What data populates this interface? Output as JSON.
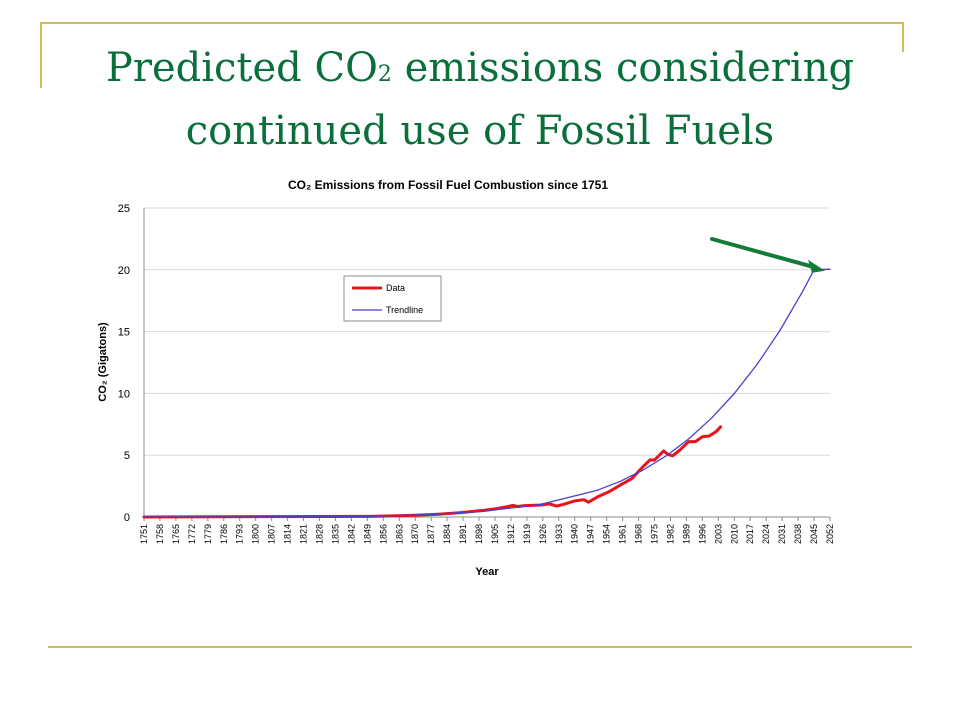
{
  "slide": {
    "title_line1_part1": "Predicted CO",
    "title_subscript": "2",
    "title_line1_part2": " emissions considering",
    "title_line2": "continued use of Fossil Fuels"
  },
  "colors": {
    "frame": "#cbbf5d",
    "title": "#0a6f3a",
    "data_series": "#e8141a",
    "trendline_series": "#4a3fcf",
    "arrow": "#157a3a",
    "grid": "#d9d9d9"
  },
  "chart_data": {
    "type": "line",
    "title": "CO₂ Emissions from Fossil Fuel Combustion since 1751",
    "xlabel": "Year",
    "ylabel": "CO₂ (Gigatons)",
    "xlim": [
      1751,
      2052
    ],
    "ylim": [
      0,
      25
    ],
    "yticks": [
      0,
      5,
      10,
      15,
      20,
      25
    ],
    "xticks": [
      "1751",
      "1758",
      "1765",
      "1772",
      "1779",
      "1786",
      "1793",
      "1800",
      "1807",
      "1814",
      "1821",
      "1828",
      "1835",
      "1842",
      "1849",
      "1856",
      "1863",
      "1870",
      "1877",
      "1884",
      "1891",
      "1898",
      "1905",
      "1912",
      "1919",
      "1926",
      "1933",
      "1940",
      "1947",
      "1954",
      "1961",
      "1968",
      "1975",
      "1982",
      "1989",
      "1996",
      "2003",
      "2010",
      "2017",
      "2024",
      "2031",
      "2038",
      "2045",
      "2052"
    ],
    "grid": "horizontal",
    "legend_position": "upper-left",
    "series": [
      {
        "name": "Data",
        "color": "#e8141a",
        "points": [
          [
            1751,
            0.0
          ],
          [
            1800,
            0.03
          ],
          [
            1830,
            0.04
          ],
          [
            1850,
            0.05
          ],
          [
            1860,
            0.09
          ],
          [
            1870,
            0.14
          ],
          [
            1880,
            0.23
          ],
          [
            1890,
            0.36
          ],
          [
            1900,
            0.53
          ],
          [
            1905,
            0.66
          ],
          [
            1910,
            0.82
          ],
          [
            1913,
            0.94
          ],
          [
            1915,
            0.85
          ],
          [
            1918,
            0.92
          ],
          [
            1920,
            0.93
          ],
          [
            1925,
            0.97
          ],
          [
            1929,
            1.06
          ],
          [
            1932,
            0.88
          ],
          [
            1935,
            1.02
          ],
          [
            1940,
            1.3
          ],
          [
            1944,
            1.4
          ],
          [
            1946,
            1.2
          ],
          [
            1950,
            1.63
          ],
          [
            1955,
            2.04
          ],
          [
            1960,
            2.58
          ],
          [
            1965,
            3.1
          ],
          [
            1970,
            4.08
          ],
          [
            1973,
            4.62
          ],
          [
            1975,
            4.6
          ],
          [
            1979,
            5.35
          ],
          [
            1981,
            5.05
          ],
          [
            1983,
            4.95
          ],
          [
            1986,
            5.4
          ],
          [
            1990,
            6.1
          ],
          [
            1993,
            6.1
          ],
          [
            1996,
            6.5
          ],
          [
            1999,
            6.55
          ],
          [
            2002,
            6.9
          ],
          [
            2004,
            7.3
          ]
        ]
      },
      {
        "name": "Trendline",
        "color": "#4a3fcf",
        "points": [
          [
            1751,
            0.0
          ],
          [
            1800,
            0.0
          ],
          [
            1850,
            0.06
          ],
          [
            1875,
            0.19
          ],
          [
            1900,
            0.46
          ],
          [
            1925,
            1.02
          ],
          [
            1950,
            2.17
          ],
          [
            1960,
            2.89
          ],
          [
            1970,
            3.8
          ],
          [
            1980,
            4.93
          ],
          [
            1990,
            6.32
          ],
          [
            2000,
            7.99
          ],
          [
            2010,
            9.99
          ],
          [
            2020,
            12.35
          ],
          [
            2030,
            15.09
          ],
          [
            2040,
            18.26
          ],
          [
            2045,
            20.0
          ],
          [
            2052,
            20.05
          ]
        ]
      }
    ],
    "annotation": {
      "type": "arrow",
      "points_to": [
        2052,
        20
      ]
    }
  }
}
